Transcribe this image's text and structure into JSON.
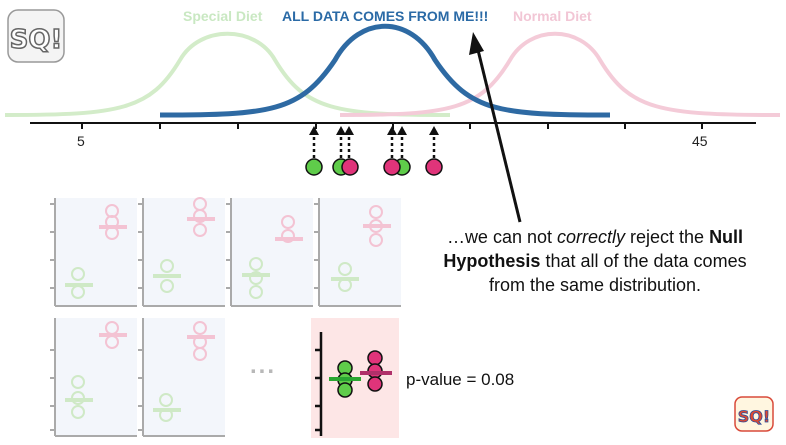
{
  "labels": {
    "special": {
      "text": "Special Diet",
      "color": "#c9e8c2"
    },
    "all": {
      "text": "ALL DATA COMES FROM ME!!!",
      "color": "#2a6aa6"
    },
    "normal": {
      "text": "Normal Diet",
      "color": "#f2c6d5"
    }
  },
  "axis": {
    "ticks": [
      {
        "value": "5"
      },
      {
        "value": "45"
      }
    ]
  },
  "caption": {
    "line1_prefix": "…we can not ",
    "line1_italic": "correctly",
    "line1_suffix": " reject the ",
    "line1_bold": "Null",
    "line2_bold": "Hypothesis",
    "line2_suffix": " that all of the data comes",
    "line3": "from the same distribution."
  },
  "ellipsis": "...",
  "pvalue": "p-value = 0.08",
  "colors": {
    "green": "#5fcc4a",
    "pink": "#e0347a",
    "light_green": "#cfe9c6",
    "light_pink": "#f3c3d3",
    "blue": "#2a6aa6",
    "panel_bg": "#f3f6fb",
    "highlight_bg": "#fde6e6"
  },
  "logo": {
    "text": "SQ!",
    "alt_text": "StatQuest"
  }
}
